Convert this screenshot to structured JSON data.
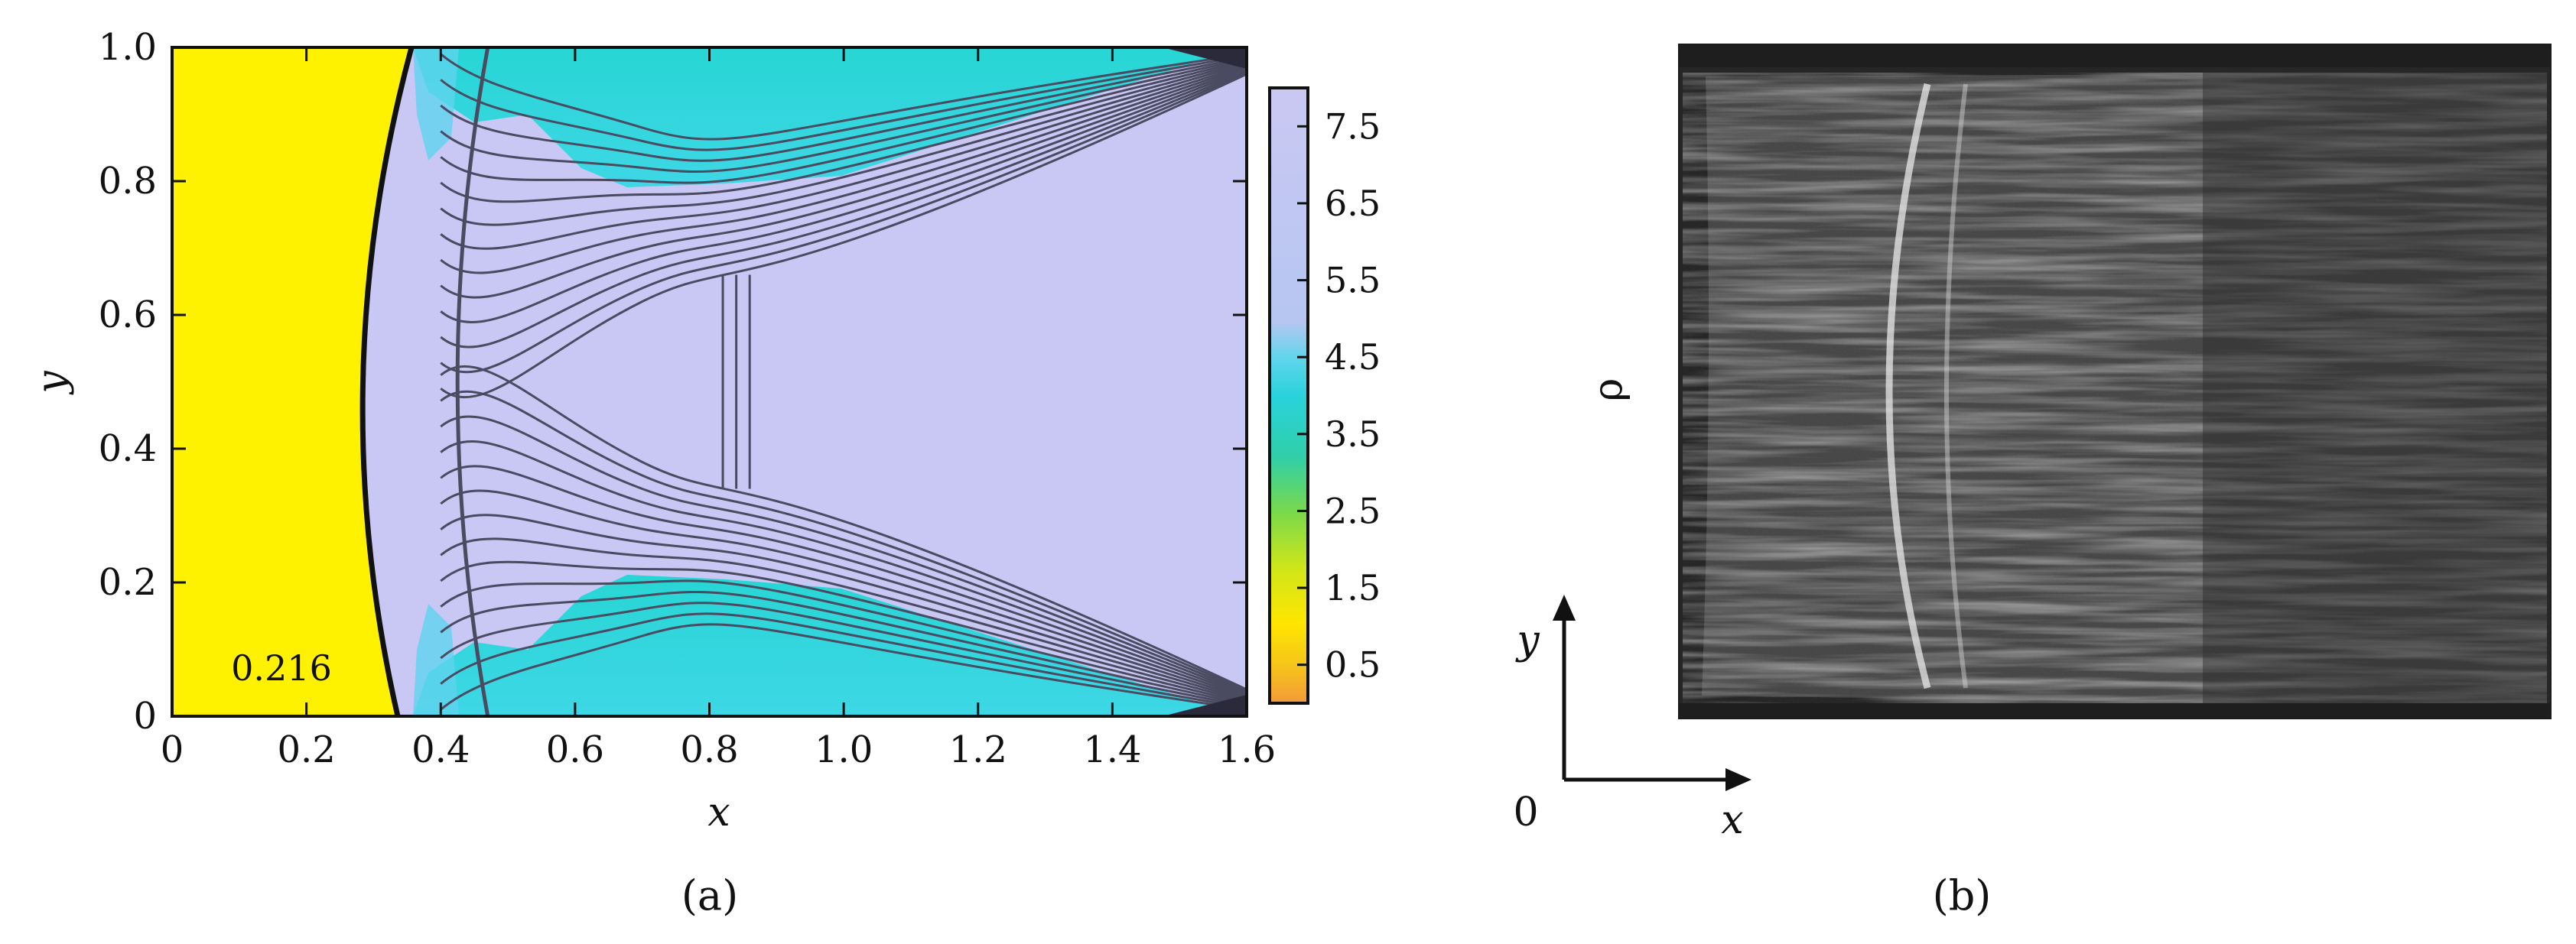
{
  "chart_data": [
    {
      "type": "heatmap",
      "panel": "(a)",
      "xlabel": "x",
      "ylabel": "y",
      "xlim": [
        0,
        1.6
      ],
      "ylim": [
        0,
        1.0
      ],
      "x_ticks": [
        "0",
        "0.2",
        "0.4",
        "0.6",
        "0.8",
        "1.0",
        "1.2",
        "1.4",
        "1.6"
      ],
      "y_ticks": [
        "0",
        "0.2",
        "0.4",
        "0.6",
        "0.8",
        "1.0"
      ],
      "annotation": "0.216",
      "colorbar": {
        "range": [
          0,
          8
        ],
        "ticks": [
          "0.5",
          "1.5",
          "2.5",
          "3.5",
          "4.5",
          "5.5",
          "6.5",
          "7.5"
        ],
        "colors": [
          "#f4a13a",
          "#f2d000",
          "#9ddc2e",
          "#33cfc4",
          "#2fd4df",
          "#b9c8f0",
          "#c8c6f2"
        ]
      },
      "regions": {
        "left_state_color": "#fff200",
        "left_state_value": 0.216,
        "shocked_region_color": "#c9c7f3",
        "boundary_layer_color": "#23d7d4"
      },
      "contour_color": "#4a4a60"
    },
    {
      "type": "image",
      "panel": "(b)",
      "side_label": "ρ",
      "axes_labels": {
        "x": "x",
        "y": "y",
        "origin": "0"
      }
    }
  ]
}
